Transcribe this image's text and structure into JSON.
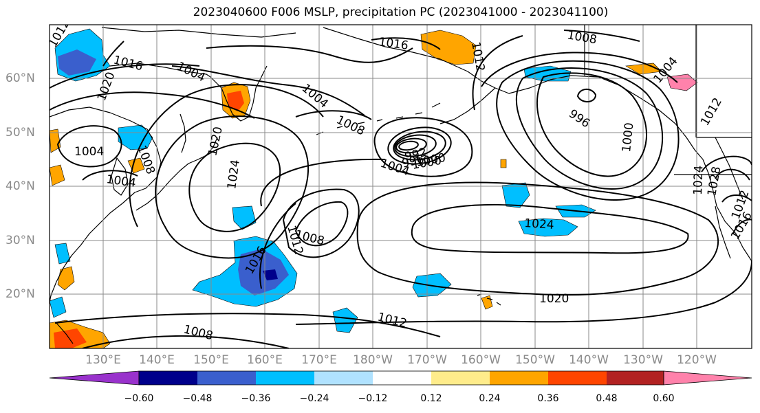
{
  "title": "2023040600 F006 MSLP, precipitation PC (2023041000 - 2023041100)",
  "lat_labels": [
    "60°N",
    "50°N",
    "40°N",
    "30°N",
    "20°N"
  ],
  "lon_labels": [
    "130°E",
    "140°E",
    "150°E",
    "160°E",
    "170°E",
    "180°W",
    "170°W",
    "160°W",
    "150°W",
    "140°W",
    "130°W",
    "120°W"
  ],
  "colorbar": {
    "colors": [
      "#9932cc",
      "#00008b",
      "#3a5fcd",
      "#00bfff",
      "#b0e2ff",
      "#ffffff",
      "#ffec8b",
      "#ffa500",
      "#ff4500",
      "#b22222",
      "#ff82ab"
    ],
    "tick_labels": [
      "−0.60",
      "−0.48",
      "−0.36",
      "−0.24",
      "−0.12",
      "0.12",
      "0.24",
      "0.36",
      "0.48",
      "0.60"
    ]
  },
  "isobar_labels": [
    "1012",
    "1016",
    "1020",
    "1004",
    "1004",
    "1008",
    "1016",
    "1012",
    "1008",
    "1004",
    "1020",
    "1004",
    "1004",
    "1024",
    "1008",
    "1012",
    "992",
    "996",
    "1000",
    "1004",
    "1000",
    "996",
    "1000",
    "1012",
    "1024",
    "1028",
    "1016",
    "1024",
    "1016",
    "1008",
    "1012",
    "1020",
    "1012",
    "1008"
  ]
}
